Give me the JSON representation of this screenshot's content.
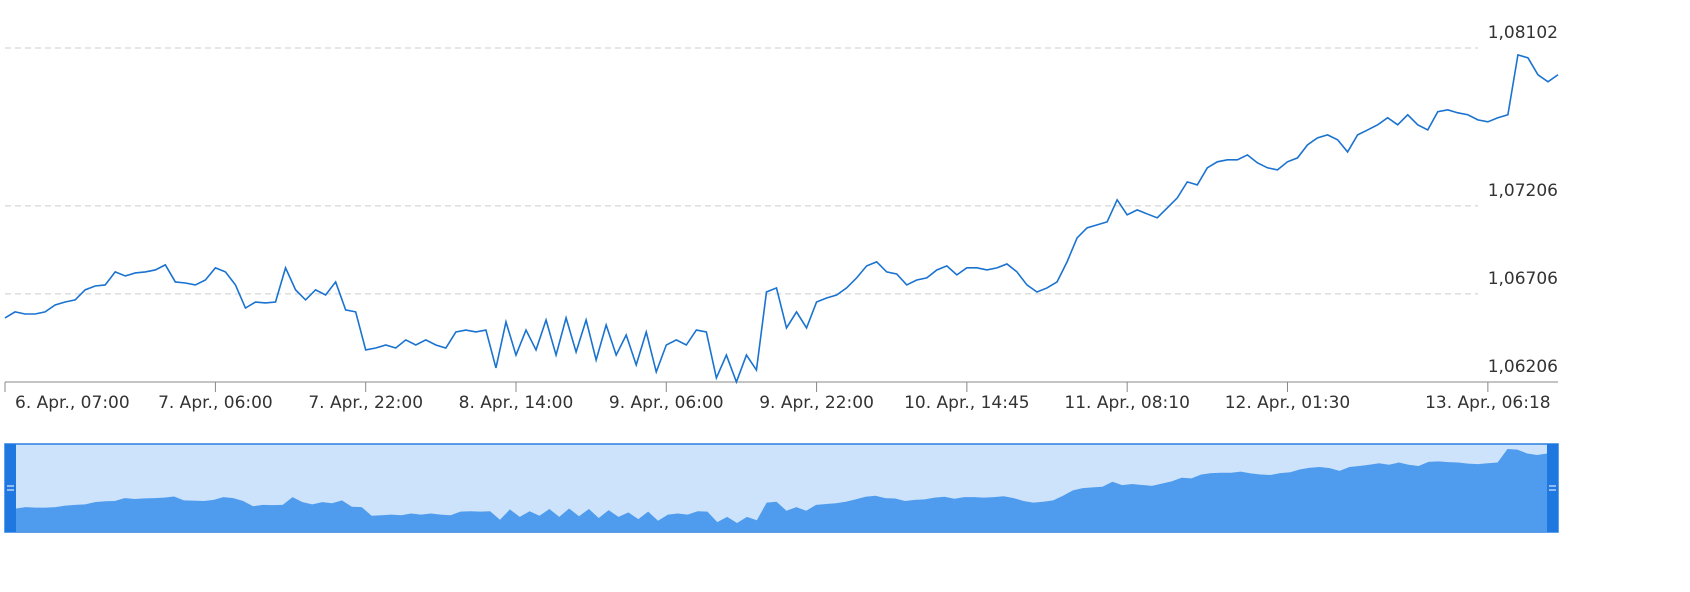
{
  "chart_data": {
    "type": "line",
    "color": "#1a73d0",
    "grid": true,
    "ylim": [
      1.06206,
      1.08102
    ],
    "yticks": [
      {
        "value": 1.06206,
        "label": "1,06206"
      },
      {
        "value": 1.06706,
        "label": "1,06706"
      },
      {
        "value": 1.07206,
        "label": "1,07206"
      },
      {
        "value": 1.08102,
        "label": "1,08102"
      }
    ],
    "categories": [
      "6. Apr., 07:00",
      null,
      null,
      null,
      null,
      null,
      null,
      null,
      null,
      null,
      null,
      null,
      null,
      null,
      null,
      null,
      null,
      null,
      null,
      null,
      null,
      "7. Apr., 06:00",
      null,
      null,
      null,
      null,
      null,
      null,
      null,
      null,
      null,
      null,
      null,
      null,
      null,
      null,
      "7. Apr., 22:00",
      null,
      null,
      null,
      null,
      null,
      null,
      null,
      null,
      null,
      null,
      null,
      null,
      null,
      null,
      "8. Apr., 14:00",
      null,
      null,
      null,
      null,
      null,
      null,
      null,
      null,
      null,
      null,
      null,
      null,
      null,
      null,
      "9. Apr., 06:00",
      null,
      null,
      null,
      null,
      null,
      null,
      null,
      null,
      null,
      null,
      null,
      null,
      null,
      null,
      "9. Apr., 22:00",
      null,
      null,
      null,
      null,
      null,
      null,
      null,
      null,
      null,
      null,
      null,
      null,
      null,
      null,
      "10. Apr., 14:45",
      null,
      null,
      null,
      null,
      null,
      null,
      null,
      null,
      null,
      null,
      null,
      null,
      null,
      null,
      null,
      "11. Apr., 08:10",
      null,
      null,
      null,
      null,
      null,
      null,
      null,
      null,
      null,
      null,
      null,
      null,
      null,
      null,
      null,
      "12. Apr., 01:30",
      null,
      null,
      null,
      null,
      null,
      null,
      null,
      null,
      null,
      null,
      null,
      null,
      null,
      null,
      null,
      null,
      null,
      null,
      null,
      "13. Apr., 06:18",
      null,
      null,
      null,
      null,
      null,
      null,
      null
    ],
    "values": [
      1.0657,
      1.06604,
      1.06592,
      1.06592,
      1.06604,
      1.06643,
      1.0666,
      1.06672,
      1.06729,
      1.06751,
      1.06757,
      1.06831,
      1.06808,
      1.06825,
      1.06831,
      1.06842,
      1.06871,
      1.06774,
      1.06768,
      1.06757,
      1.06785,
      1.06854,
      1.06831,
      1.06757,
      1.06626,
      1.0666,
      1.06655,
      1.0666,
      1.06854,
      1.06729,
      1.06672,
      1.06729,
      1.067,
      1.06774,
      1.06615,
      1.06604,
      1.06388,
      1.06399,
      1.06416,
      1.06399,
      1.06445,
      1.06416,
      1.06445,
      1.06416,
      1.06399,
      1.0649,
      1.06501,
      1.0649,
      1.06501,
      1.06286,
      1.06547,
      1.06359,
      1.06501,
      1.06388,
      1.06558,
      1.06359,
      1.0657,
      1.06376,
      1.06558,
      1.06331,
      1.0653,
      1.06359,
      1.06473,
      1.06303,
      1.0649,
      1.06263,
      1.06416,
      1.06445,
      1.06416,
      1.06501,
      1.0649,
      1.06229,
      1.06359,
      1.06206,
      1.06359,
      1.06274,
      1.06717,
      1.0674,
      1.06513,
      1.06604,
      1.06513,
      1.0666,
      1.06683,
      1.067,
      1.0674,
      1.06797,
      1.06865,
      1.06888,
      1.06831,
      1.06819,
      1.06757,
      1.06785,
      1.06797,
      1.06842,
      1.06865,
      1.06814,
      1.06854,
      1.06854,
      1.06842,
      1.06854,
      1.06876,
      1.06831,
      1.06757,
      1.06717,
      1.0674,
      1.06774,
      1.06888,
      1.07024,
      1.07081,
      1.07098,
      1.07115,
      1.0724,
      1.07155,
      1.07183,
      1.0716,
      1.07138,
      1.07194,
      1.07251,
      1.07342,
      1.07325,
      1.07422,
      1.07456,
      1.07467,
      1.07467,
      1.07495,
      1.0745,
      1.07422,
      1.0741,
      1.07456,
      1.07478,
      1.07552,
      1.07592,
      1.07609,
      1.07581,
      1.07512,
      1.07609,
      1.07637,
      1.07666,
      1.07706,
      1.07666,
      1.07723,
      1.07666,
      1.07637,
      1.0774,
      1.07751,
      1.07734,
      1.07723,
      1.07694,
      1.07683,
      1.07706,
      1.07723,
      1.08063,
      1.08046,
      1.0795,
      1.0791,
      1.0795
    ]
  }
}
